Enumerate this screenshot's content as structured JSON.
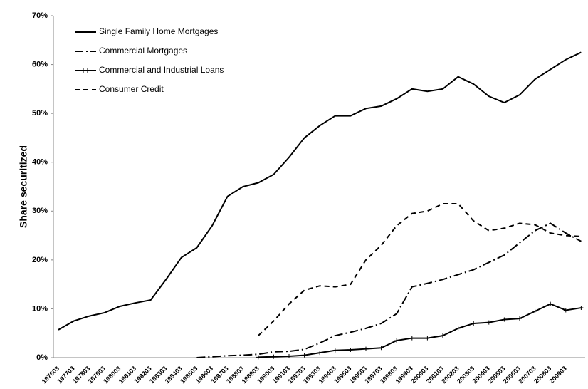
{
  "chart_data": {
    "type": "line",
    "y_label": "Share securitized",
    "categories": [
      "197603",
      "197703",
      "197803",
      "197903",
      "198003",
      "198103",
      "198203",
      "198303",
      "198403",
      "198503",
      "198603",
      "198703",
      "198803",
      "198903",
      "199003",
      "199103",
      "199203",
      "199303",
      "199403",
      "199503",
      "199603",
      "199703",
      "199803",
      "199903",
      "200003",
      "200103",
      "200203",
      "200303",
      "200403",
      "200503",
      "200603",
      "200703",
      "200803",
      "200903",
      null
    ],
    "series": [
      {
        "name": "Single Family Home Mortgages",
        "color": "#000000",
        "style": "solid",
        "values": [
          5.7,
          7.5,
          8.5,
          9.2,
          10.5,
          11.2,
          11.8,
          16,
          20.5,
          22.5,
          27,
          33,
          35,
          35.8,
          37.5,
          41,
          45,
          47.5,
          49.5,
          49.5,
          51,
          51.5,
          53,
          55,
          54.5,
          55,
          57.5,
          56,
          53.5,
          52.2,
          53.8,
          57,
          59,
          61,
          62.5
        ]
      },
      {
        "name": "Commercial Mortgages",
        "color": "#000000",
        "style": "dashdot",
        "values": [
          null,
          null,
          null,
          null,
          null,
          null,
          null,
          null,
          null,
          0,
          0.2,
          0.4,
          0.5,
          0.7,
          1.2,
          1.3,
          1.7,
          3,
          4.5,
          5.2,
          6,
          7,
          9,
          14.5,
          15.2,
          16,
          17,
          18,
          19.5,
          21,
          23.5,
          26,
          27.5,
          25.5,
          23.8
        ]
      },
      {
        "name": "Commercial and Industrial Loans",
        "color": "#000000",
        "style": "plus",
        "values": [
          null,
          null,
          null,
          null,
          null,
          null,
          null,
          null,
          null,
          null,
          null,
          null,
          null,
          0.1,
          0.2,
          0.3,
          0.5,
          1,
          1.5,
          1.6,
          1.8,
          2,
          3.5,
          4,
          4,
          4.5,
          6,
          7,
          7.2,
          7.8,
          8,
          9.5,
          11,
          9.7,
          10.2
        ]
      },
      {
        "name": "Consumer Credit",
        "color": "#000000",
        "style": "dashed",
        "values": [
          null,
          null,
          null,
          null,
          null,
          null,
          null,
          null,
          null,
          null,
          null,
          null,
          null,
          4.5,
          7.5,
          11,
          13.8,
          14.7,
          14.5,
          15,
          20,
          23,
          27,
          29.5,
          30,
          31.5,
          31.5,
          28,
          26,
          26.5,
          27.5,
          27.2,
          25.5,
          25,
          24.8
        ]
      }
    ],
    "ylim": [
      0,
      70
    ],
    "yticks": [
      {
        "value": 0,
        "label": "0%"
      },
      {
        "value": 10,
        "label": "10%"
      },
      {
        "value": 20,
        "label": "20%"
      },
      {
        "value": 30,
        "label": "30%"
      },
      {
        "value": 40,
        "label": "40%"
      },
      {
        "value": 50,
        "label": "50%"
      },
      {
        "value": 60,
        "label": "60%"
      },
      {
        "value": 70,
        "label": "70%"
      }
    ],
    "grid": false,
    "legend": "upper left"
  }
}
